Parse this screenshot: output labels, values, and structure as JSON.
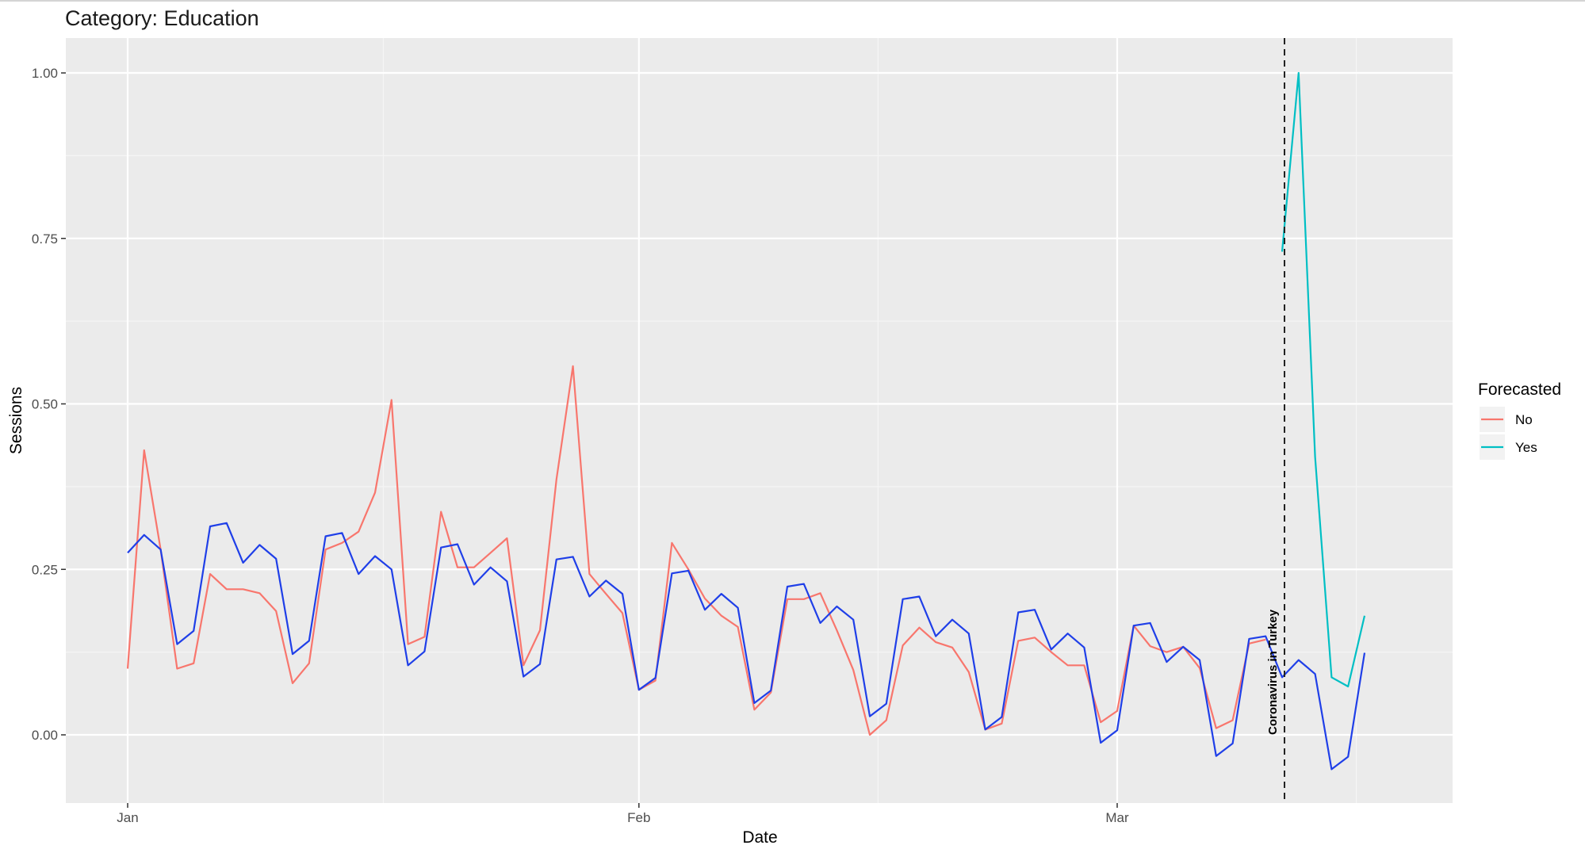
{
  "title": "Category: Education",
  "chart_data": {
    "type": "line",
    "xlabel": "Date",
    "ylabel": "Sessions",
    "x_start": "2020-01-01",
    "x_range": [
      "2020-01-01",
      "2020-03-20"
    ],
    "xticks": [
      {
        "label": "Jan",
        "date": "2020-01-01"
      },
      {
        "label": "Feb",
        "date": "2020-02-01"
      },
      {
        "label": "Mar",
        "date": "2020-03-01"
      }
    ],
    "ylim": [
      -0.1,
      1.05
    ],
    "yticks": [
      {
        "label": "0.00",
        "value": 0
      },
      {
        "label": "0.25",
        "value": 0.25
      },
      {
        "label": "0.50",
        "value": 0.5
      },
      {
        "label": "0.75",
        "value": 0.75
      },
      {
        "label": "1.00",
        "value": 1.0
      }
    ],
    "grid": true,
    "legend": {
      "title": "Forecasted",
      "position": "right",
      "entries": [
        {
          "label": "No",
          "color": "#F8766D"
        },
        {
          "label": "Yes",
          "color": "#00BFC4"
        }
      ]
    },
    "series": [
      {
        "name": "No",
        "color": "#F8766D",
        "start": "2020-01-01",
        "values": [
          0.1,
          0.43,
          0.28,
          0.1,
          0.108,
          0.243,
          0.22,
          0.22,
          0.214,
          0.187,
          0.078,
          0.108,
          0.28,
          0.29,
          0.307,
          0.366,
          0.506,
          0.137,
          0.148,
          0.337,
          0.253,
          0.253,
          0.275,
          0.297,
          0.105,
          0.158,
          0.386,
          0.557,
          0.243,
          0.213,
          0.184,
          0.068,
          0.082,
          0.29,
          0.25,
          0.206,
          0.18,
          0.163,
          0.038,
          0.064,
          0.205,
          0.205,
          0.214,
          0.158,
          0.098,
          0.0,
          0.022,
          0.135,
          0.162,
          0.14,
          0.132,
          0.095,
          0.008,
          0.017,
          0.142,
          0.147,
          0.125,
          0.105,
          0.105,
          0.019,
          0.036,
          0.165,
          0.134,
          0.125,
          0.133,
          0.101,
          0.01,
          0.022,
          0.138,
          0.144
        ]
      },
      {
        "name": "Yes",
        "color": "#00BFC4",
        "start": "2020-03-11",
        "values": [
          0.73,
          1.0,
          0.42,
          0.087,
          0.073,
          0.18
        ]
      },
      {
        "color": "#1F3FE8",
        "start": "2020-01-01",
        "values": [
          0.275,
          0.302,
          0.28,
          0.137,
          0.157,
          0.315,
          0.32,
          0.26,
          0.287,
          0.266,
          0.122,
          0.142,
          0.3,
          0.305,
          0.243,
          0.27,
          0.25,
          0.105,
          0.126,
          0.283,
          0.288,
          0.227,
          0.253,
          0.232,
          0.088,
          0.107,
          0.265,
          0.269,
          0.209,
          0.233,
          0.213,
          0.068,
          0.086,
          0.244,
          0.248,
          0.189,
          0.213,
          0.192,
          0.048,
          0.067,
          0.224,
          0.228,
          0.169,
          0.194,
          0.174,
          0.028,
          0.047,
          0.205,
          0.209,
          0.149,
          0.174,
          0.153,
          0.008,
          0.027,
          0.185,
          0.189,
          0.129,
          0.153,
          0.132,
          -0.012,
          0.007,
          0.165,
          0.169,
          0.11,
          0.133,
          0.113,
          -0.032,
          -0.013,
          0.145,
          0.149,
          0.087,
          0.113,
          0.092,
          -0.052,
          -0.033,
          0.124
        ]
      }
    ],
    "vline": {
      "date": "2020-03-11",
      "label": "Coronavirus in Turkey",
      "style": "dashed"
    }
  }
}
